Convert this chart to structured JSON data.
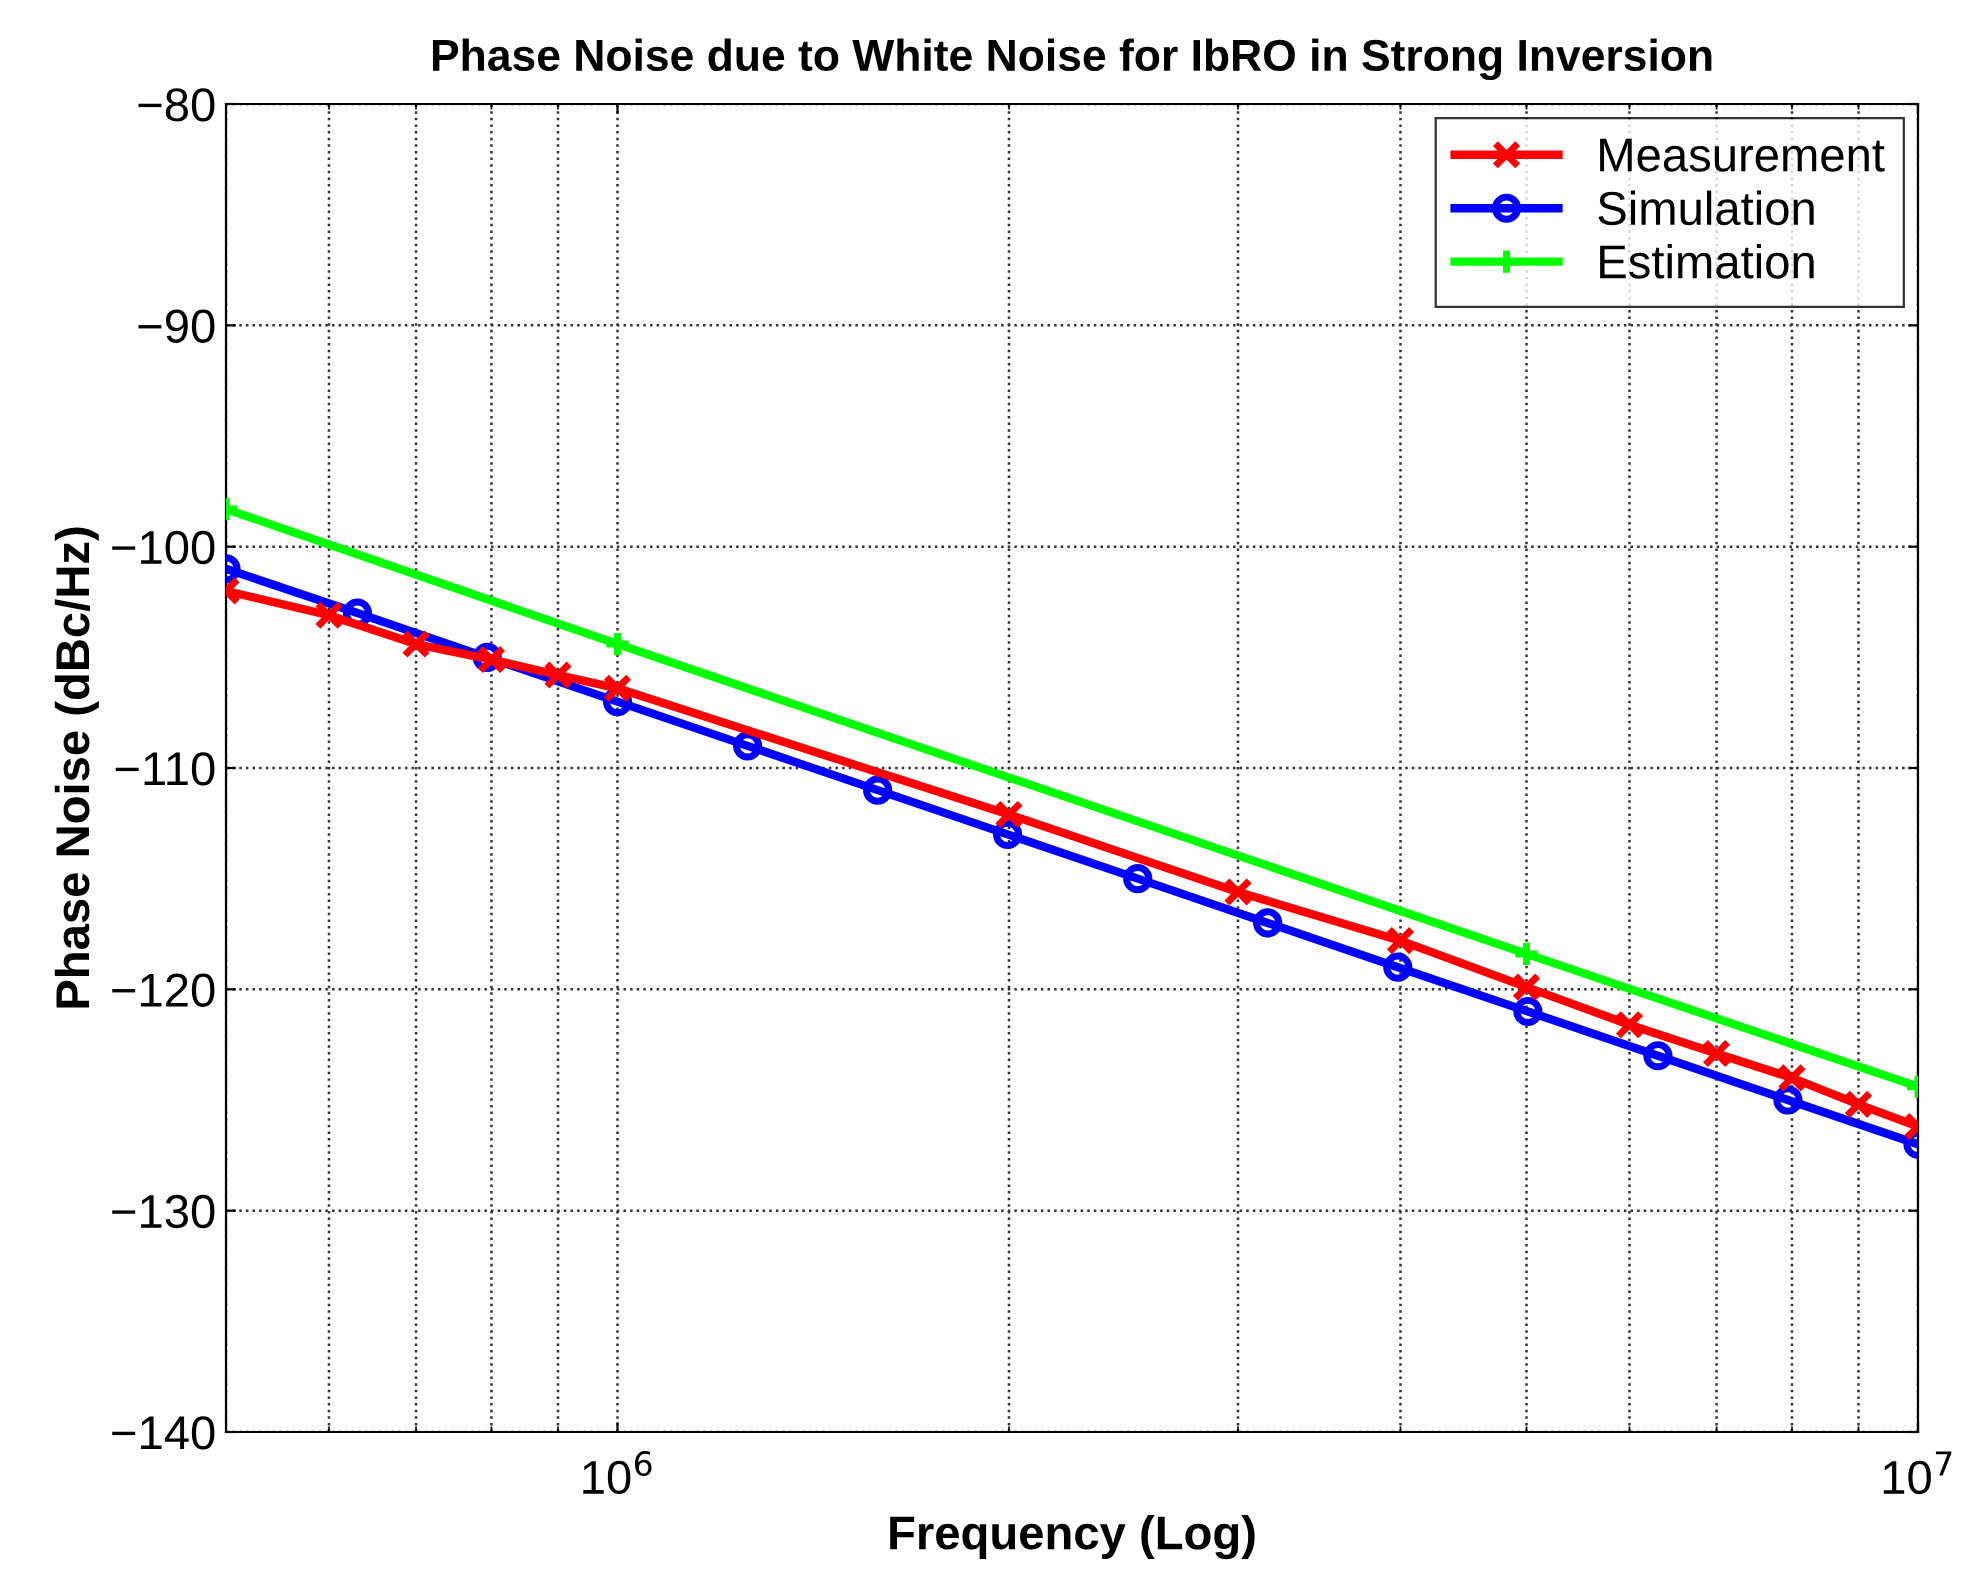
{
  "chart_data": {
    "type": "line",
    "title": "Phase Noise due to White Noise for IbRO in Strong Inversion",
    "xlabel": "Frequency (Log)",
    "ylabel": "Phase Noise (dBc/Hz)",
    "log": "x",
    "grid": true,
    "legend": "top right",
    "xlim": [
      500000,
      10000000
    ],
    "xticks": [
      {
        "value": 1000000,
        "label": "10$^{6}$"
      },
      {
        "value": 10000000,
        "label": "10$^{7}$"
      }
    ],
    "ylim": [
      -140,
      -80
    ],
    "yticks": [
      -140,
      -130,
      -120,
      -110,
      -100,
      -90,
      -80
    ],
    "series": [
      {
        "name": "Measurement",
        "color": "#ff0000",
        "marker": "cross",
        "x": [
          500000,
          600000,
          700000,
          800000,
          900000,
          1000000,
          2000000,
          3000000,
          4000000,
          5000000,
          6000000,
          7000000,
          8000000,
          9000000,
          10000000
        ],
        "values": [
          -102.0,
          -103.1,
          -104.4,
          -105.1,
          -105.8,
          -106.4,
          -112.1,
          -115.6,
          -117.8,
          -119.9,
          -121.6,
          -122.9,
          -124.0,
          -125.2,
          -126.2
        ]
      },
      {
        "name": "Simulation",
        "color": "#0000ff",
        "marker": "circle",
        "x": [
          500000,
          631000,
          794000,
          1000000,
          1259000,
          1585000,
          1995000,
          2512000,
          3162000,
          3981000,
          5012000,
          6310000,
          7943000,
          10000000
        ],
        "values": [
          -101,
          -103,
          -105,
          -107,
          -109,
          -111,
          -113,
          -115,
          -117,
          -119,
          -121,
          -123,
          -125,
          -127
        ]
      },
      {
        "name": "Estimation",
        "color": "#00ff00",
        "marker": "plus",
        "x": [
          500000,
          1000000,
          5000000,
          10000000
        ],
        "values": [
          -98.3,
          -104.4,
          -118.4,
          -124.4
        ]
      }
    ]
  }
}
